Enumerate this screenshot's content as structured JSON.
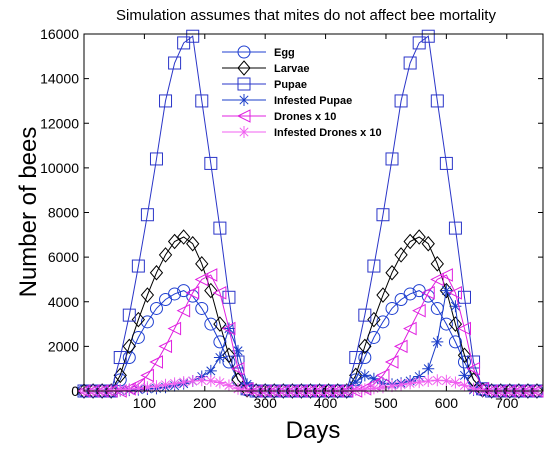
{
  "chart_data": {
    "type": "line",
    "title": "Simulation assumes that mites do not affect bee mortality",
    "xlabel": "Days",
    "ylabel": "Number of bees",
    "xlim": [
      0,
      760
    ],
    "ylim": [
      0,
      16000
    ],
    "xticks": [
      100,
      200,
      300,
      400,
      500,
      600,
      700
    ],
    "yticks": [
      0,
      2000,
      4000,
      6000,
      8000,
      10000,
      12000,
      14000,
      16000
    ],
    "grid": false,
    "legend_position": "top-center",
    "x": [
      0,
      15,
      30,
      45,
      60,
      75,
      90,
      105,
      120,
      135,
      150,
      165,
      180,
      195,
      210,
      225,
      240,
      255,
      270,
      285,
      300,
      315,
      330,
      345,
      360,
      375,
      390,
      405,
      420,
      435,
      450,
      465,
      480,
      495,
      510,
      525,
      540,
      555,
      570,
      585,
      600,
      615,
      630,
      645,
      660,
      675,
      690,
      705,
      720,
      735,
      750
    ],
    "series": [
      {
        "name": "Egg",
        "color": "#1f3fd0",
        "marker": "circle",
        "values": [
          0,
          0,
          0,
          0,
          500,
          1500,
          2400,
          3100,
          3700,
          4100,
          4350,
          4500,
          4250,
          3700,
          3000,
          2200,
          1300,
          500,
          50,
          0,
          0,
          0,
          0,
          0,
          0,
          0,
          0,
          0,
          0,
          0,
          500,
          1500,
          2400,
          3100,
          3700,
          4100,
          4350,
          4500,
          4250,
          3700,
          3000,
          2200,
          1300,
          500,
          50,
          0,
          0,
          0,
          0,
          0,
          0
        ]
      },
      {
        "name": "Larvae",
        "color": "#000000",
        "marker": "diamond",
        "values": [
          0,
          0,
          0,
          0,
          700,
          2000,
          3200,
          4300,
          5300,
          6100,
          6700,
          6900,
          6600,
          5700,
          4500,
          3000,
          1600,
          500,
          50,
          0,
          0,
          0,
          0,
          0,
          0,
          0,
          0,
          0,
          0,
          0,
          700,
          2000,
          3200,
          4300,
          5300,
          6100,
          6700,
          6900,
          6600,
          5700,
          4500,
          3000,
          1600,
          500,
          50,
          0,
          0,
          0,
          0,
          0,
          0
        ]
      },
      {
        "name": "Pupae",
        "color": "#2a35c8",
        "marker": "square",
        "values": [
          0,
          0,
          0,
          0,
          1500,
          3400,
          5600,
          7900,
          10400,
          13000,
          14700,
          15600,
          15900,
          13000,
          10200,
          7300,
          4200,
          1300,
          100,
          0,
          0,
          0,
          0,
          0,
          0,
          0,
          0,
          0,
          0,
          0,
          1500,
          3400,
          5600,
          7900,
          10400,
          13000,
          14700,
          15600,
          15900,
          13000,
          10200,
          7300,
          4200,
          1300,
          100,
          0,
          0,
          0,
          0,
          0,
          0
        ]
      },
      {
        "name": "Infested Pupae",
        "color": "#1a3cc8",
        "marker": "asterisk",
        "values": [
          0,
          0,
          0,
          0,
          20,
          40,
          60,
          90,
          120,
          170,
          240,
          330,
          450,
          650,
          900,
          1500,
          2800,
          1800,
          300,
          0,
          0,
          0,
          0,
          0,
          0,
          0,
          0,
          0,
          0,
          0,
          400,
          700,
          550,
          350,
          300,
          350,
          450,
          650,
          1000,
          2200,
          4500,
          3800,
          700,
          50,
          0,
          0,
          0,
          0,
          0,
          0,
          0
        ]
      },
      {
        "name": "Drones x 10",
        "color": "#e020e0",
        "marker": "triangle-left",
        "values": [
          0,
          0,
          0,
          0,
          0,
          100,
          300,
          700,
          1300,
          2000,
          2800,
          3600,
          4400,
          5000,
          5200,
          4400,
          2800,
          1000,
          100,
          0,
          0,
          0,
          0,
          0,
          0,
          0,
          0,
          0,
          0,
          0,
          0,
          100,
          300,
          700,
          1300,
          2000,
          2800,
          3600,
          4400,
          5000,
          5200,
          4400,
          2800,
          1000,
          100,
          0,
          0,
          0,
          0,
          0,
          0
        ]
      },
      {
        "name": "Infested Drones x 10",
        "color": "#f060f0",
        "marker": "asterisk",
        "values": [
          0,
          0,
          0,
          20,
          50,
          80,
          120,
          170,
          220,
          280,
          340,
          400,
          450,
          480,
          460,
          380,
          250,
          100,
          20,
          0,
          0,
          0,
          0,
          0,
          0,
          0,
          0,
          0,
          0,
          20,
          50,
          80,
          120,
          170,
          220,
          280,
          340,
          400,
          450,
          480,
          460,
          380,
          250,
          100,
          20,
          0,
          0,
          0,
          0,
          0,
          0
        ]
      }
    ]
  }
}
